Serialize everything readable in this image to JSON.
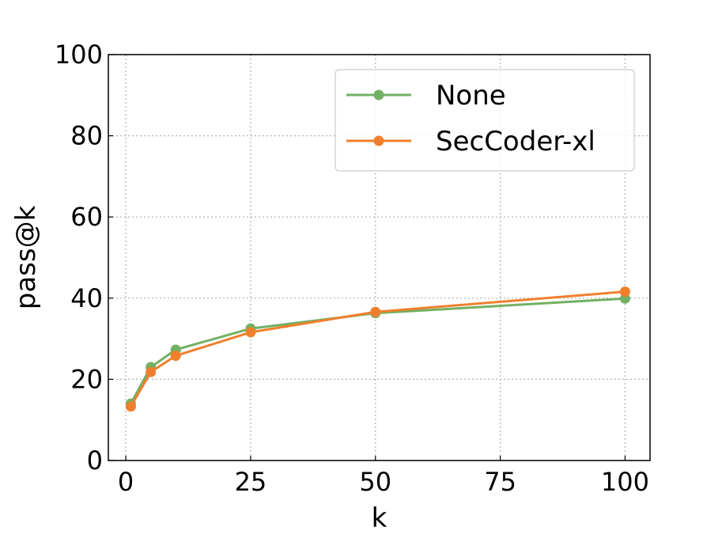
{
  "chart_data": {
    "type": "line",
    "xlabel": "k",
    "ylabel": "pass@k",
    "xlim": [
      -3.5,
      105
    ],
    "ylim": [
      0,
      100
    ],
    "xticks": [
      0,
      25,
      50,
      75,
      100
    ],
    "yticks": [
      0,
      20,
      40,
      60,
      80,
      100
    ],
    "grid": true,
    "legend_position": "top-right",
    "x": [
      1,
      5,
      10,
      25,
      50,
      100
    ],
    "series": [
      {
        "name": "None",
        "color": "#72b063",
        "values": [
          14.0,
          23.0,
          27.3,
          32.5,
          36.3,
          39.9
        ]
      },
      {
        "name": "SecCoder-xl",
        "color": "#f07f2d",
        "values": [
          13.3,
          21.8,
          25.8,
          31.6,
          36.6,
          41.6
        ]
      }
    ]
  }
}
